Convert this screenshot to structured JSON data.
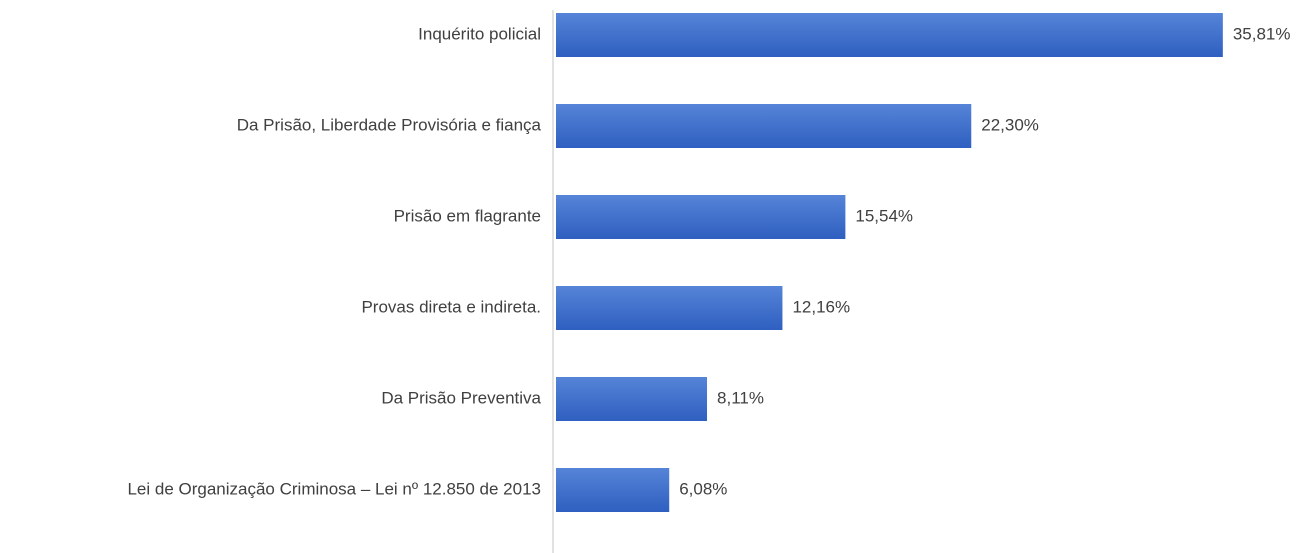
{
  "chart_data": {
    "type": "hbar",
    "categories": [
      "Inquérito policial",
      "Da Prisão, Liberdade Provisória e fiança",
      "Prisão em flagrante",
      "Provas direta e indireta.",
      "Da Prisão Preventiva",
      "Lei de Organização Criminosa – Lei nº 12.850 de 2013"
    ],
    "values": [
      35.81,
      22.3,
      15.54,
      12.16,
      8.11,
      6.08
    ],
    "value_labels": [
      "35,81%",
      "22,30%",
      "15,54%",
      "12,16%",
      "8,11%",
      "6,08%"
    ],
    "color": "#4472c4",
    "xlim": [
      0,
      37
    ]
  }
}
